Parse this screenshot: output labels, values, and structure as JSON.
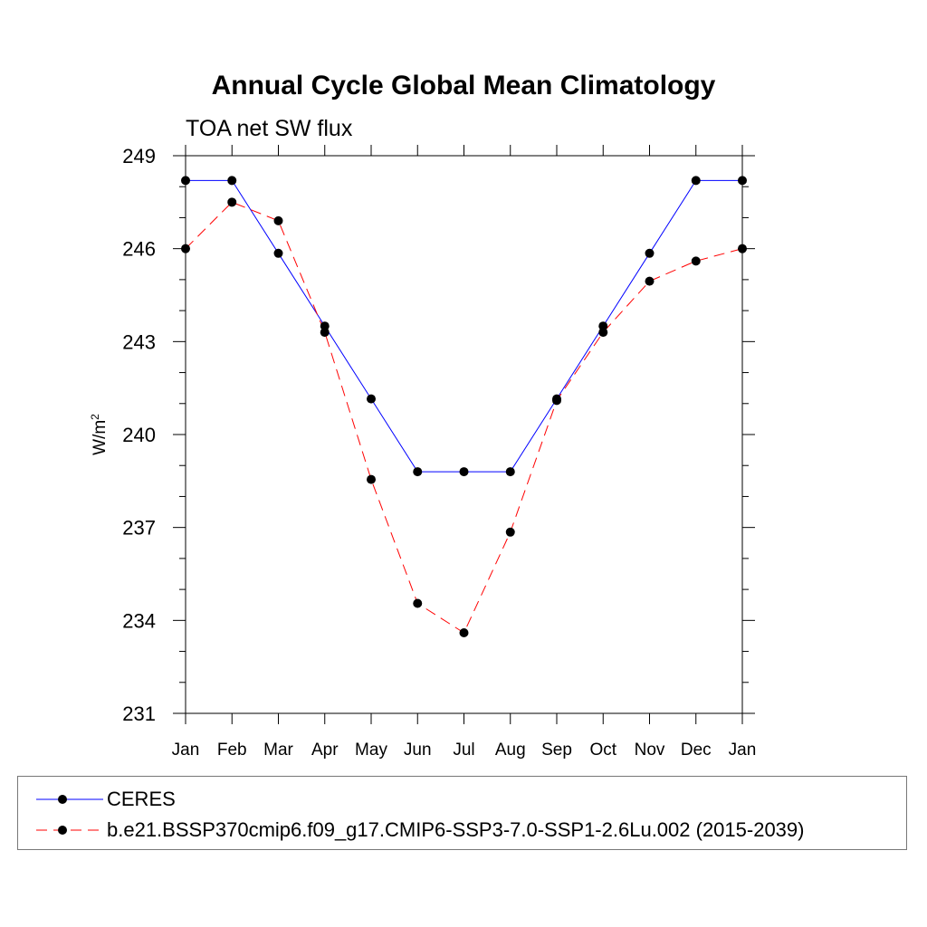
{
  "chart_data": {
    "type": "line",
    "title": "Annual Cycle Global Mean Climatology",
    "subtitle": "TOA net SW flux",
    "ylabel": "W/m",
    "ylabel_sup": "2",
    "categories": [
      "Jan",
      "Feb",
      "Mar",
      "Apr",
      "May",
      "Jun",
      "Jul",
      "Aug",
      "Sep",
      "Oct",
      "Nov",
      "Dec",
      "Jan"
    ],
    "ylim": [
      231,
      249
    ],
    "yticks": [
      231,
      234,
      237,
      240,
      243,
      246,
      249
    ],
    "series": [
      {
        "name": "CERES",
        "color": "#0000ff",
        "dash": "solid",
        "values": [
          248.2,
          248.2,
          245.85,
          243.5,
          241.15,
          238.8,
          238.8,
          238.8,
          241.15,
          243.5,
          245.85,
          248.2,
          248.2
        ]
      },
      {
        "name": "b.e21.BSSP370cmip6.f09_g17.CMIP6-SSP3-7.0-SSP1-2.6Lu.002 (2015-2039)",
        "color": "#ff0000",
        "dash": "dashed",
        "values": [
          246.0,
          247.5,
          246.9,
          243.3,
          238.55,
          234.55,
          233.6,
          236.85,
          241.1,
          243.3,
          244.95,
          245.6,
          246.0
        ]
      }
    ],
    "grid": false,
    "legend_position": "bottom"
  }
}
